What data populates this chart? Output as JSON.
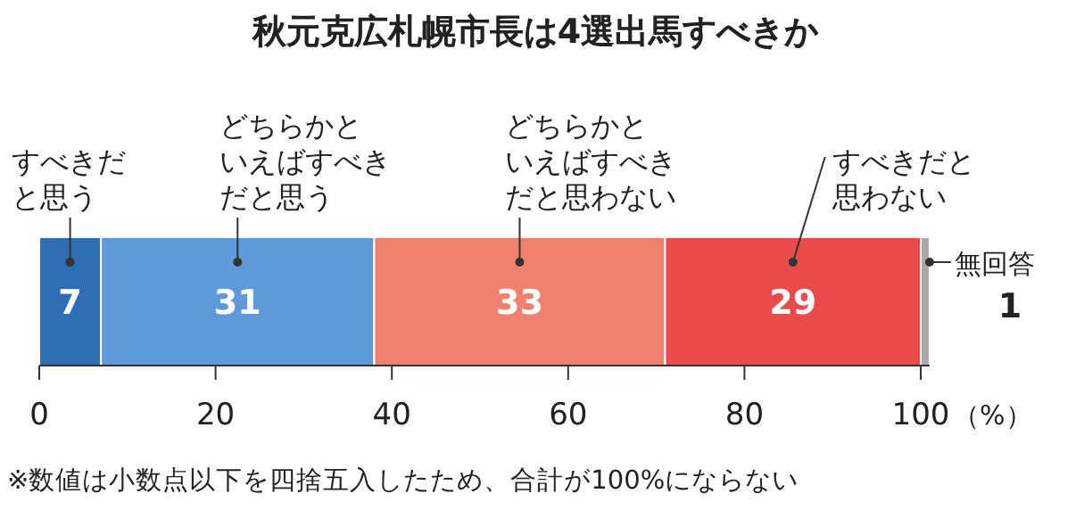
{
  "chart_data": {
    "type": "bar",
    "orientation": "horizontal",
    "stacked": true,
    "title": "秋元克広札幌市長は4選出馬すべきか",
    "categories": [
      null
    ],
    "series": [
      {
        "name": "すべきだと思う",
        "color": "#2f6db5",
        "values": [
          7
        ]
      },
      {
        "name": "どちらかといえばすべきだと思う",
        "color": "#5e9ad8",
        "values": [
          31
        ]
      },
      {
        "name": "どちらかといえばすべきだと思わない",
        "color": "#f2806e",
        "values": [
          33
        ]
      },
      {
        "name": "すべきだと思わない",
        "color": "#e94a4a",
        "values": [
          29
        ]
      },
      {
        "name": "無回答",
        "color": "#a9a9a9",
        "values": [
          1
        ]
      }
    ],
    "data_labels": true,
    "xlim": [
      0,
      101
    ],
    "xticks": [
      0,
      20,
      40,
      60,
      80,
      100
    ],
    "xlabel": "（%）",
    "annotations": [
      "※数値は小数点以下を四捨五入したため、合計が100%にならない"
    ]
  }
}
